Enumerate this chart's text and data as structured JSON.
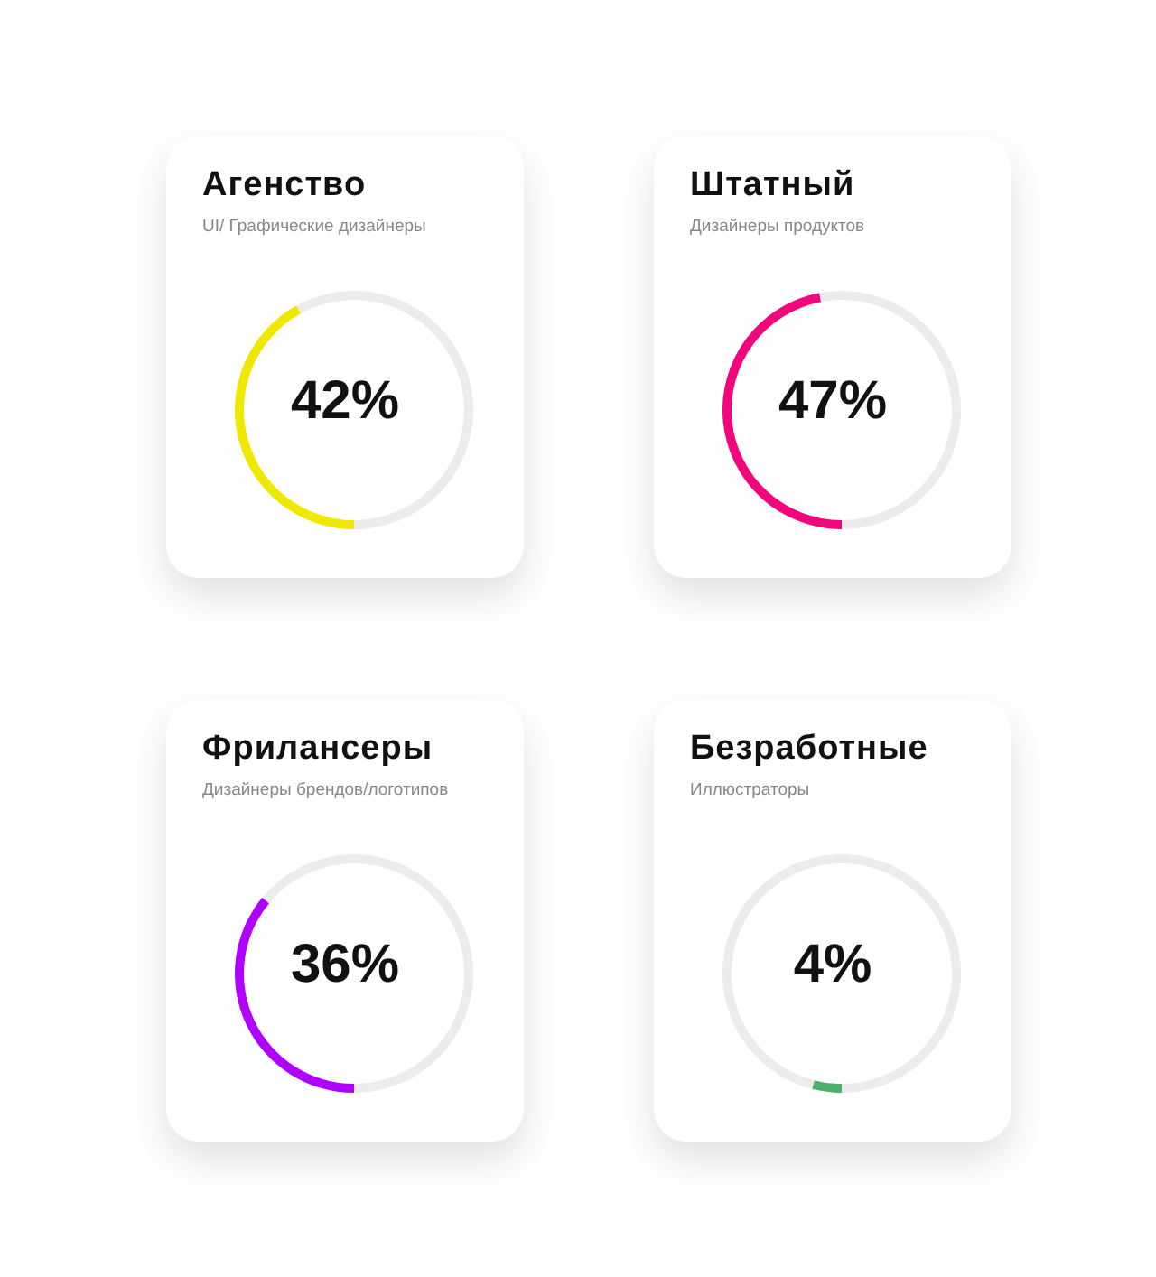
{
  "chart_data": [
    {
      "type": "donut",
      "title": "Агенство",
      "subtitle": "UI/ Графические дизайнеры",
      "categories": [
        null,
        null
      ],
      "values": [
        42,
        58
      ],
      "colors": [
        "#f0e800",
        "#ececec"
      ],
      "annotations": [
        "42%"
      ]
    },
    {
      "type": "donut",
      "title": "Штатный",
      "subtitle": "Дизайнеры продуктов",
      "categories": [
        null,
        null
      ],
      "values": [
        47,
        53
      ],
      "colors": [
        "#f2067e",
        "#ececec"
      ],
      "annotations": [
        "47%"
      ]
    },
    {
      "type": "donut",
      "title": "Фрилансеры",
      "subtitle": "Дизайнеры брендов/логотипов",
      "categories": [
        null,
        null
      ],
      "values": [
        36,
        64
      ],
      "colors": [
        "#b000ff",
        "#ececec"
      ],
      "annotations": [
        "36%"
      ]
    },
    {
      "type": "donut",
      "title": "Безработные",
      "subtitle": "Иллюстраторы",
      "categories": [
        null,
        null
      ],
      "values": [
        4,
        96
      ],
      "colors": [
        "#4caf6a",
        "#ececec"
      ],
      "annotations": [
        "4%"
      ]
    }
  ]
}
